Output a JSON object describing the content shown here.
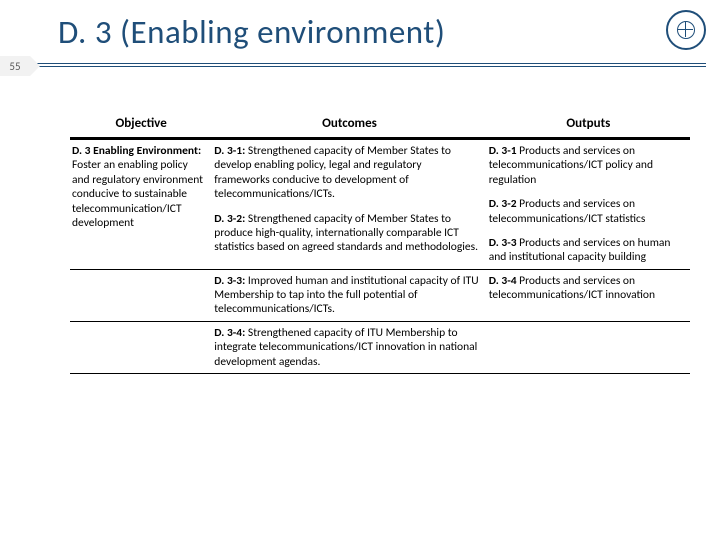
{
  "header": {
    "title": "D. 3 (Enabling environment)",
    "page_number": "55",
    "title_color": "#1f4e79",
    "divider_color": "#1f4e79"
  },
  "table": {
    "columns": [
      "Objective",
      "Outcomes",
      "Outputs"
    ],
    "header_border_color": "#000000",
    "row_border_color": "#000000",
    "objective": {
      "label": "D. 3 Enabling Environment:",
      "text": " Foster an enabling policy and regulatory environment conducive to sustainable telecommunication/ICT development"
    },
    "outcomes": [
      {
        "label": "D. 3-1:",
        "text": " Strengthened capacity of Member States to develop enabling policy, legal and regulatory frameworks conducive to development of telecommunications/ICTs."
      },
      {
        "label": "D. 3-2:",
        "text": " Strengthened capacity of Member States to produce high-quality, internationally comparable ICT statistics based on agreed standards and methodologies."
      },
      {
        "label": "D. 3-3:",
        "text": " Improved human and institutional capacity of ITU Membership to tap into the full potential of telecommunications/ICTs."
      },
      {
        "label": "D. 3-4:",
        "text": " Strengthened capacity of ITU Membership to integrate telecommunications/ICT innovation in national development agendas."
      }
    ],
    "outputs": [
      {
        "label": "D. 3-1",
        "text": " Products and services on telecommunications/ICT policy and regulation"
      },
      {
        "label": "D. 3-2",
        "text": " Products and services on telecommunications/ICT statistics"
      },
      {
        "label": "D. 3-3",
        "text": " Products and services on human and institutional capacity building"
      },
      {
        "label": "D. 3-4",
        "text": " Products and services on telecommunications/ICT innovation"
      }
    ],
    "font_size": 11.5
  },
  "logo": {
    "name": "itu-logo",
    "color": "#1f4e79"
  }
}
